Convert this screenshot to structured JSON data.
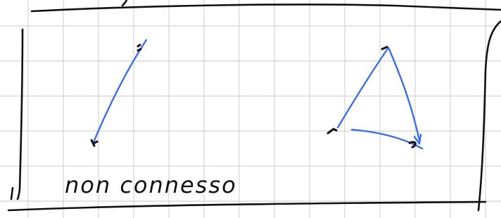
{
  "note": {
    "text": "non connesso"
  }
}
